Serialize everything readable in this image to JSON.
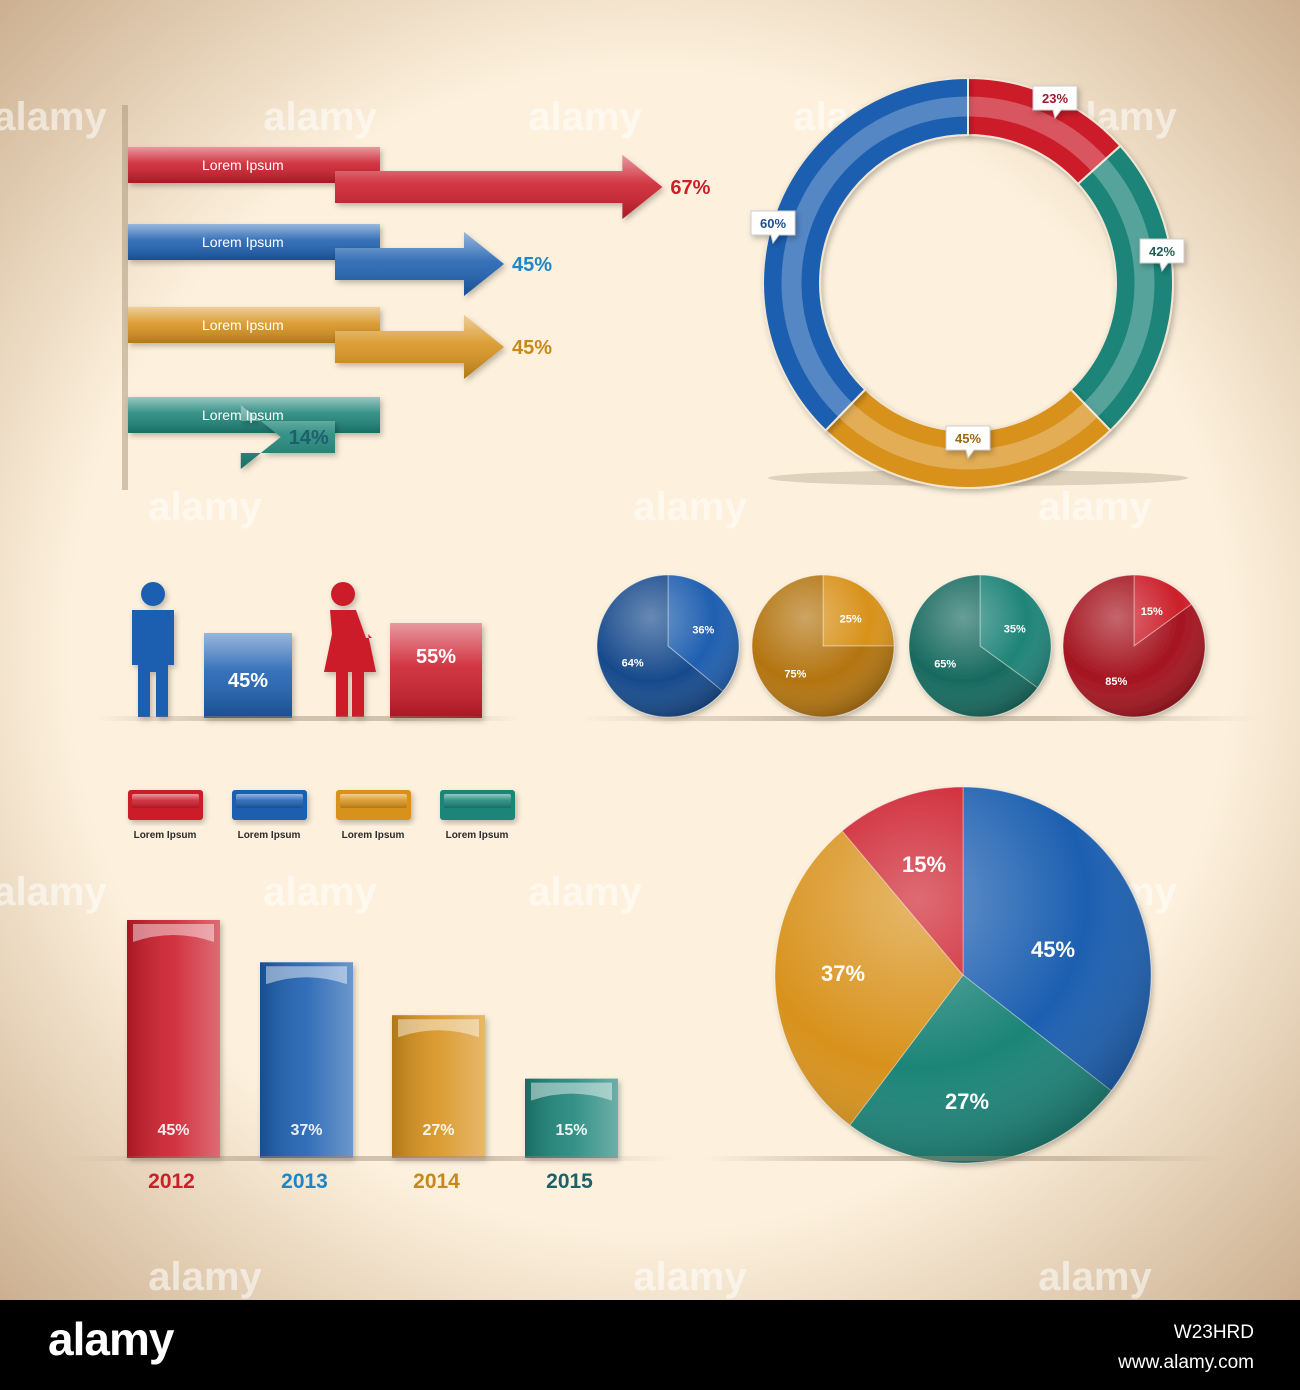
{
  "colors": {
    "red": "#cc1f2a",
    "blue": "#1f5fb0",
    "orange": "#d8921b",
    "teal": "#1f8478",
    "background": "#fdf1dd",
    "vignette": "#c9ac8c"
  },
  "watermark": "alamy",
  "arrow_chart": {
    "type": "bar",
    "orientation": "horizontal",
    "bars": [
      {
        "label": "Lorem Ipsum",
        "value_label": "67%",
        "value": 67,
        "color": "red"
      },
      {
        "label": "Lorem Ipsum",
        "value_label": "45%",
        "value": 45,
        "color": "blue"
      },
      {
        "label": "Lorem Ipsum",
        "value_label": "45%",
        "value": 45,
        "color": "orange"
      },
      {
        "label": "Lorem Ipsum",
        "value_label": "14%",
        "value": 14,
        "color": "teal"
      }
    ]
  },
  "ring_chart": {
    "type": "pie",
    "style": "donut",
    "segments": [
      {
        "label": "23%",
        "color": "red"
      },
      {
        "label": "42%",
        "color": "teal"
      },
      {
        "label": "45%",
        "color": "orange"
      },
      {
        "label": "60%",
        "color": "blue"
      }
    ]
  },
  "gender_chart": {
    "male": {
      "icon": "male-icon",
      "value_label": "45%",
      "value": 45,
      "color": "blue"
    },
    "female": {
      "icon": "female-icon",
      "value_label": "55%",
      "value": 55,
      "color": "red"
    }
  },
  "small_pies": [
    {
      "color": "blue",
      "slices": [
        {
          "label": "36%",
          "value": 36
        },
        {
          "label": "64%",
          "value": 64
        }
      ]
    },
    {
      "color": "orange",
      "slices": [
        {
          "label": "25%",
          "value": 25
        },
        {
          "label": "75%",
          "value": 75
        }
      ]
    },
    {
      "color": "teal",
      "slices": [
        {
          "label": "35%",
          "value": 35
        },
        {
          "label": "65%",
          "value": 65
        }
      ]
    },
    {
      "color": "red",
      "slices": [
        {
          "label": "15%",
          "value": 15
        },
        {
          "label": "85%",
          "value": 85
        }
      ]
    }
  ],
  "legend": [
    {
      "label": "Lorem Ipsum",
      "color": "red"
    },
    {
      "label": "Lorem Ipsum",
      "color": "blue"
    },
    {
      "label": "Lorem Ipsum",
      "color": "orange"
    },
    {
      "label": "Lorem Ipsum",
      "color": "teal"
    }
  ],
  "chart_data": [
    {
      "type": "bar",
      "categories": [
        "2012",
        "2013",
        "2014",
        "2015"
      ],
      "values": [
        45,
        37,
        27,
        15
      ],
      "value_labels": [
        "45%",
        "37%",
        "27%",
        "15%"
      ],
      "colors": [
        "red",
        "blue",
        "orange",
        "teal"
      ],
      "ylim": [
        0,
        45
      ],
      "grid": false
    },
    {
      "type": "pie",
      "slices": [
        {
          "label": "45%",
          "value": 45,
          "color": "blue"
        },
        {
          "label": "27%",
          "value": 27,
          "color": "teal"
        },
        {
          "label": "37%",
          "value": 37,
          "color": "orange"
        },
        {
          "label": "15%",
          "value": 15,
          "color": "red"
        }
      ]
    }
  ],
  "brand": {
    "logo": "alamy",
    "image_code": "W23HRD",
    "url": "www.alamy.com"
  }
}
